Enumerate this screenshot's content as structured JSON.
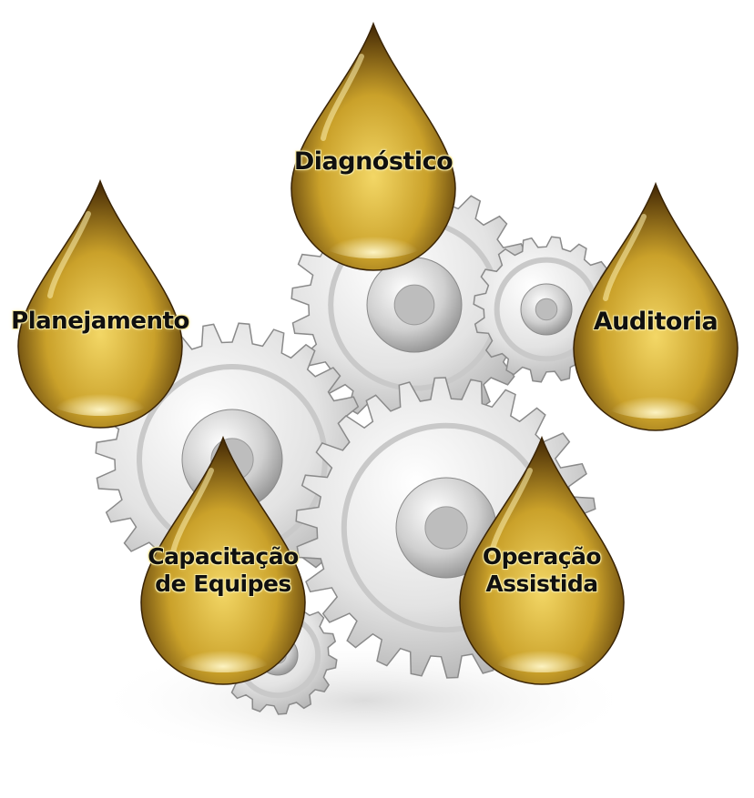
{
  "colors": {
    "drop_gold_light": "#f3d766",
    "drop_gold_mid": "#caa12a",
    "drop_gold_dark": "#4a2e06",
    "gear_light": "#f4f4f4",
    "gear_mid": "#c9c9c9",
    "gear_dark": "#8a8a8a",
    "label_text": "#101010"
  },
  "drops": [
    {
      "id": "diagnostico",
      "lines": [
        "Diagnóstico"
      ]
    },
    {
      "id": "planejamento",
      "lines": [
        "Planejamento"
      ]
    },
    {
      "id": "auditoria",
      "lines": [
        "Auditoria"
      ]
    },
    {
      "id": "capacitacao",
      "lines": [
        "Capacitação",
        "de Equipes"
      ]
    },
    {
      "id": "operacao",
      "lines": [
        "Operação",
        "Assistida"
      ]
    }
  ]
}
